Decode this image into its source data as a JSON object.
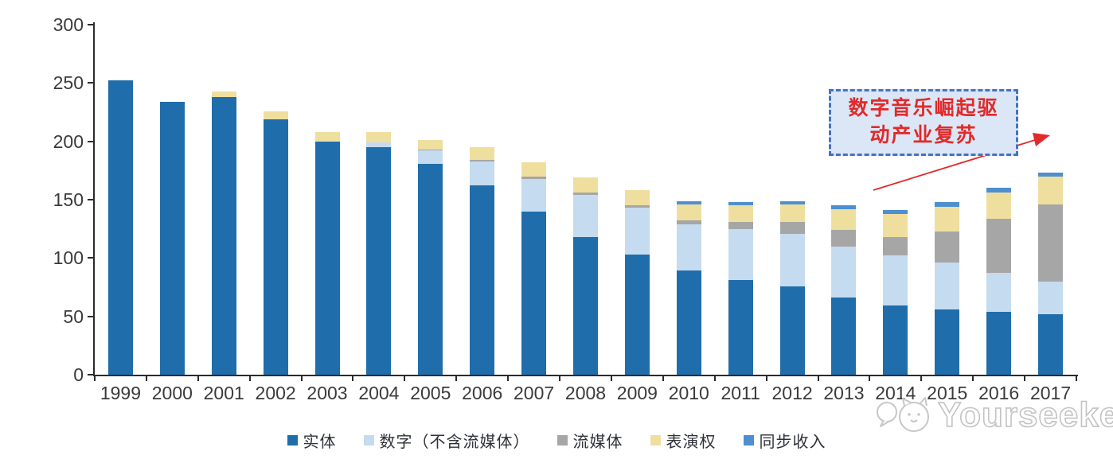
{
  "watermark": {
    "brand": "Yourseeker",
    "logo": "cat-chat-logo"
  },
  "annotation": {
    "text": "数字音乐崛起驱动产业复苏",
    "line1": "数字音乐崛起驱",
    "line2": "动产业复苏",
    "box_fill": "#dbe7f7",
    "border_color": "#4472c4",
    "text_color": "#e12a2a",
    "arrow_color": "#e12a2a"
  },
  "chart_data": {
    "type": "bar",
    "stacked": true,
    "title": "",
    "xlabel": "",
    "ylabel": "",
    "ylim": [
      0,
      300
    ],
    "yticks": [
      0,
      50,
      100,
      150,
      200,
      250,
      300
    ],
    "grid": false,
    "legend_position": "bottom",
    "categories": [
      "1999",
      "2000",
      "2001",
      "2002",
      "2003",
      "2004",
      "2005",
      "2006",
      "2007",
      "2008",
      "2009",
      "2010",
      "2011",
      "2012",
      "2013",
      "2014",
      "2015",
      "2016",
      "2017"
    ],
    "series": [
      {
        "name": "实体",
        "color": "#1f6dab",
        "values": [
          252,
          234,
          238,
          219,
          200,
          195,
          181,
          162,
          140,
          118,
          103,
          89,
          81,
          76,
          66,
          59,
          56,
          54,
          52
        ]
      },
      {
        "name": "数字（不含流媒体）",
        "color": "#c5dbef",
        "values": [
          0,
          0,
          0,
          0,
          0,
          4,
          11,
          21,
          28,
          36,
          40,
          40,
          44,
          45,
          44,
          43,
          40,
          33,
          28
        ]
      },
      {
        "name": "流媒体",
        "color": "#a6a6a6",
        "values": [
          0,
          0,
          0,
          0,
          0,
          0,
          1,
          1,
          2,
          2,
          2,
          3,
          6,
          10,
          14,
          16,
          27,
          47,
          66
        ]
      },
      {
        "name": "表演权",
        "color": "#efdf9f",
        "values": [
          0,
          0,
          5,
          7,
          8,
          9,
          8,
          11,
          12,
          13,
          13,
          14,
          14,
          15,
          18,
          20,
          21,
          22,
          24
        ]
      },
      {
        "name": "同步收入",
        "color": "#4e8fd0",
        "values": [
          0,
          0,
          0,
          0,
          0,
          0,
          0,
          0,
          0,
          0,
          0,
          3,
          3,
          3,
          3,
          3,
          4,
          4,
          3
        ]
      }
    ]
  }
}
